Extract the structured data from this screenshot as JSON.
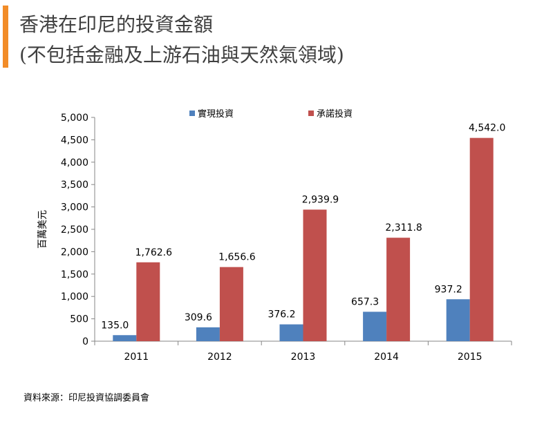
{
  "header": {
    "accent_color": "#f28c28",
    "title_line1": "香港在印尼的投資金額",
    "title_line2": "(不包括金融及上游石油與天然氣領域)"
  },
  "source": "資料來源：印尼投資協調委員會",
  "chart_data": {
    "type": "bar",
    "title": "",
    "xlabel": "",
    "ylabel": "百萬美元",
    "categories": [
      "2011",
      "2012",
      "2013",
      "2014",
      "2015"
    ],
    "series": [
      {
        "name": "實現投資",
        "color": "#4f81bd",
        "values": [
          135.0,
          309.6,
          376.2,
          657.3,
          937.2
        ],
        "labels": [
          "135.0",
          "309.6",
          "376.2",
          "657.3",
          "937.2"
        ]
      },
      {
        "name": "承諾投資",
        "color": "#c0504d",
        "values": [
          1762.6,
          1656.6,
          2939.9,
          2311.8,
          4542.0
        ],
        "labels": [
          "1,762.6",
          "1,656.6",
          "2,939.9",
          "2,311.8",
          "4,542.0"
        ]
      }
    ],
    "ylim": [
      0,
      5000
    ],
    "yticks": [
      0,
      500,
      1000,
      1500,
      2000,
      2500,
      3000,
      3500,
      4000,
      4500,
      5000
    ],
    "ytick_labels": [
      "0",
      "500",
      "1,000",
      "1,500",
      "2,000",
      "2,500",
      "3,000",
      "3,500",
      "4,000",
      "4,500",
      "5,000"
    ],
    "grid": false,
    "legend_position": "top"
  }
}
